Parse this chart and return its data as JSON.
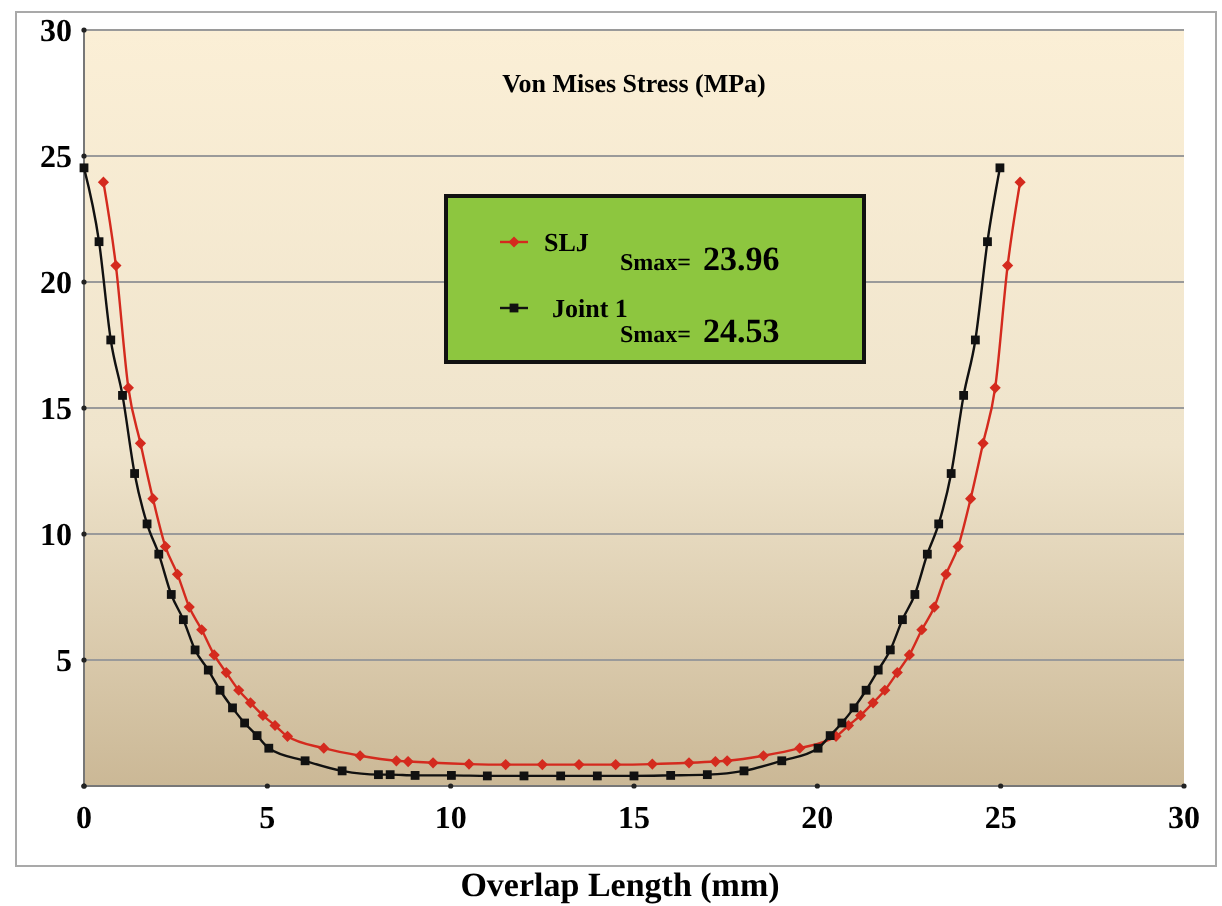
{
  "chart_data": {
    "type": "line",
    "title": "Von Mises Stress (MPa)",
    "xlabel": "Overlap Length (mm)",
    "xlim": [
      0,
      30
    ],
    "xticks": [
      0,
      5,
      10,
      15,
      20,
      25,
      30
    ],
    "ylim": [
      0,
      30
    ],
    "yticks": [
      {
        "value": 0,
        "label": null
      },
      5,
      10,
      15,
      20,
      25,
      30
    ],
    "grid": "y",
    "legend": "top",
    "tick_labels": "xy",
    "annotations": [
      "Smax= 23.96",
      "Smax= 24.53"
    ],
    "series": [
      {
        "name": "SLJ",
        "color": "#d42a1e",
        "marker": "diamond",
        "x": [
          0.53,
          0.87,
          1.21,
          1.54,
          1.88,
          2.22,
          2.55,
          2.87,
          3.21,
          3.55,
          3.88,
          4.22,
          4.54,
          4.88,
          5.21,
          5.55,
          6.54,
          7.53,
          8.52,
          8.84,
          9.52,
          10.5,
          11.5,
          12.5,
          13.5,
          14.5,
          15.5,
          16.5,
          17.22,
          17.54,
          18.53,
          19.52,
          20.51,
          20.85,
          21.18,
          21.52,
          21.84,
          22.18,
          22.51,
          22.85,
          23.19,
          23.51,
          23.84,
          24.18,
          24.52,
          24.85,
          25.19,
          25.53
        ],
        "values": [
          23.96,
          20.65,
          15.8,
          13.6,
          11.4,
          9.5,
          8.4,
          7.1,
          6.2,
          5.2,
          4.5,
          3.8,
          3.3,
          2.8,
          2.4,
          1.97,
          1.5,
          1.2,
          1.0,
          0.97,
          0.92,
          0.87,
          0.85,
          0.85,
          0.85,
          0.85,
          0.87,
          0.92,
          0.97,
          1.0,
          1.2,
          1.5,
          1.97,
          2.4,
          2.8,
          3.3,
          3.8,
          4.5,
          5.2,
          6.2,
          7.1,
          8.4,
          9.5,
          11.4,
          13.6,
          15.8,
          20.65,
          23.96
        ]
      },
      {
        "name": "Joint 1",
        "color": "#111111",
        "marker": "square",
        "x": [
          0.0,
          0.41,
          0.73,
          1.05,
          1.38,
          1.72,
          2.04,
          2.38,
          2.71,
          3.03,
          3.39,
          3.71,
          4.05,
          4.38,
          4.72,
          5.04,
          6.03,
          7.04,
          8.03,
          8.35,
          9.03,
          10.02,
          11.0,
          12.0,
          13.0,
          14.0,
          15.0,
          16.0,
          17.0,
          18.0,
          19.03,
          20.02,
          20.35,
          20.67,
          21.0,
          21.33,
          21.66,
          21.99,
          22.32,
          22.66,
          23.0,
          23.31,
          23.65,
          23.99,
          24.31,
          24.64,
          24.98
        ],
        "values": [
          24.53,
          21.6,
          17.7,
          15.5,
          12.4,
          10.4,
          9.2,
          7.6,
          6.6,
          5.4,
          4.6,
          3.8,
          3.1,
          2.5,
          2.0,
          1.5,
          1.0,
          0.6,
          0.45,
          0.45,
          0.42,
          0.42,
          0.4,
          0.4,
          0.4,
          0.4,
          0.4,
          0.42,
          0.45,
          0.6,
          1.0,
          1.5,
          2.0,
          2.5,
          3.1,
          3.8,
          4.6,
          5.4,
          6.6,
          7.6,
          9.2,
          10.4,
          12.4,
          15.5,
          17.7,
          21.6,
          24.53
        ]
      }
    ]
  }
}
